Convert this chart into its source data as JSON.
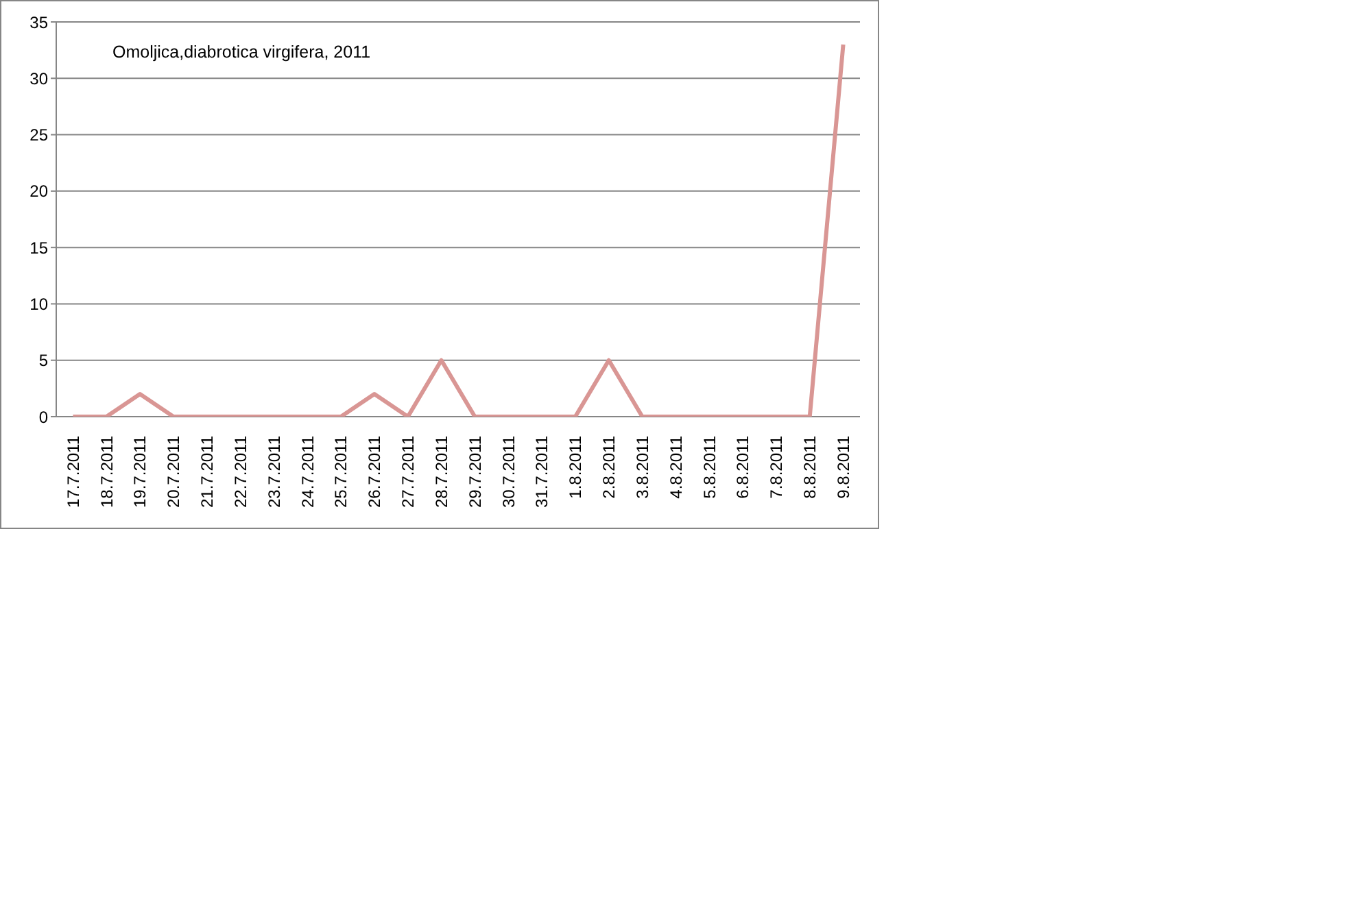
{
  "chart_data": {
    "type": "line",
    "title": "Omoljica,diabrotica virgifera, 2011",
    "categories": [
      "17.7.2011",
      "18.7.2011",
      "19.7.2011",
      "20.7.2011",
      "21.7.2011",
      "22.7.2011",
      "23.7.2011",
      "24.7.2011",
      "25.7.2011",
      "26.7.2011",
      "27.7.2011",
      "28.7.2011",
      "29.7.2011",
      "30.7.2011",
      "31.7.2011",
      "1.8.2011",
      "2.8.2011",
      "3.8.2011",
      "4.8.2011",
      "5.8.2011",
      "6.8.2011",
      "7.8.2011",
      "8.8.2011",
      "9.8.2011"
    ],
    "series": [
      {
        "color": "#d99694",
        "values": [
          0,
          0,
          2,
          0,
          0,
          0,
          0,
          0,
          0,
          2,
          0,
          5,
          0,
          0,
          0,
          0,
          5,
          0,
          0,
          0,
          0,
          0,
          0,
          33
        ]
      }
    ],
    "ylim": [
      0,
      35
    ],
    "yticks": [
      0,
      5,
      10,
      15,
      20,
      25,
      30,
      35
    ],
    "grid": "y",
    "marker": "none",
    "line_style": "solid"
  }
}
